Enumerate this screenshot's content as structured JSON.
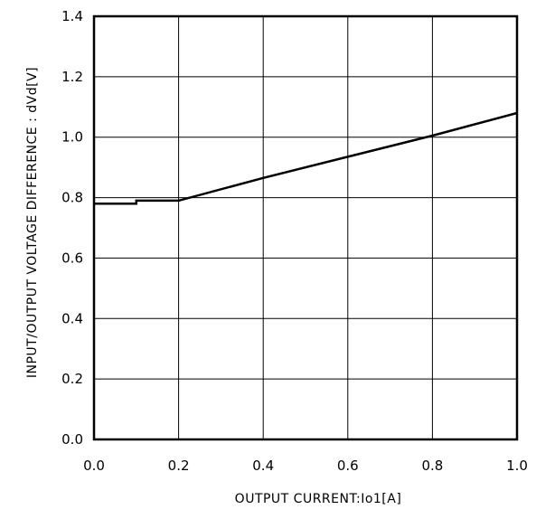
{
  "chart_data": {
    "type": "line",
    "xlabel": "OUTPUT CURRENT:Io1[A]",
    "ylabel": "INPUT/OUTPUT VOLTAGE DIFFERENCE : dVd[V]",
    "xlim": [
      0.0,
      1.0
    ],
    "ylim": [
      0.0,
      1.4
    ],
    "x_ticks": [
      "0.0",
      "0.2",
      "0.4",
      "0.6",
      "0.8",
      "1.0"
    ],
    "y_ticks": [
      "0.0",
      "0.2",
      "0.4",
      "0.6",
      "0.8",
      "1.0",
      "1.2",
      "1.4"
    ],
    "grid": true,
    "series": [
      {
        "x": [
          0.0,
          0.1,
          0.1,
          0.2,
          0.4,
          0.6,
          0.8,
          1.0
        ],
        "y": [
          0.78,
          0.78,
          0.79,
          0.79,
          0.865,
          0.935,
          1.005,
          1.08
        ]
      }
    ],
    "colors": {
      "line": "#000000",
      "grid": "#000000",
      "frame": "#000000"
    }
  }
}
